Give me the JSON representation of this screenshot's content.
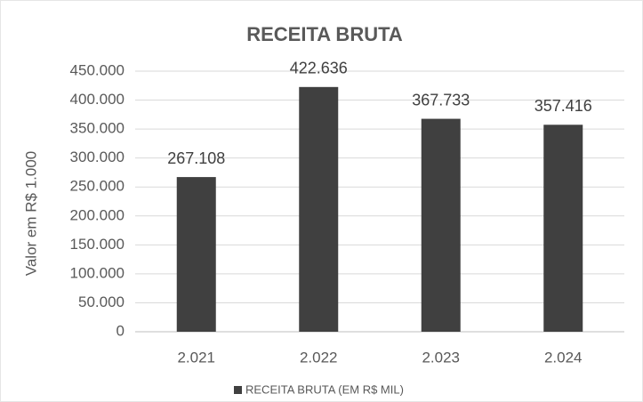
{
  "chart_data": {
    "type": "bar",
    "title": "RECEITA BRUTA",
    "y_label": "Valor em R$ 1.000",
    "categories": [
      "2.021",
      "2.022",
      "2.023",
      "2.024"
    ],
    "series": [
      {
        "name": "RECEITA BRUTA (EM R$ MIL)",
        "color": "#404040",
        "values": [
          267108,
          422636,
          367733,
          357416
        ],
        "value_labels": [
          "267.108",
          "422.636",
          "367.733",
          "357.416"
        ]
      }
    ],
    "ylim": [
      0,
      450000
    ],
    "yticks": [
      0,
      {
        "value": 50000,
        "label": "50.000"
      },
      {
        "value": 100000,
        "label": "100.000"
      },
      {
        "value": 150000,
        "label": "150.000"
      },
      {
        "value": 200000,
        "label": "200.000"
      },
      {
        "value": 250000,
        "label": "250.000"
      },
      {
        "value": 300000,
        "label": "300.000"
      },
      {
        "value": 350000,
        "label": "350.000"
      },
      {
        "value": 400000,
        "label": "400.000"
      },
      {
        "value": 450000,
        "label": "450.000"
      }
    ],
    "grid": true,
    "legend": "bottom"
  }
}
